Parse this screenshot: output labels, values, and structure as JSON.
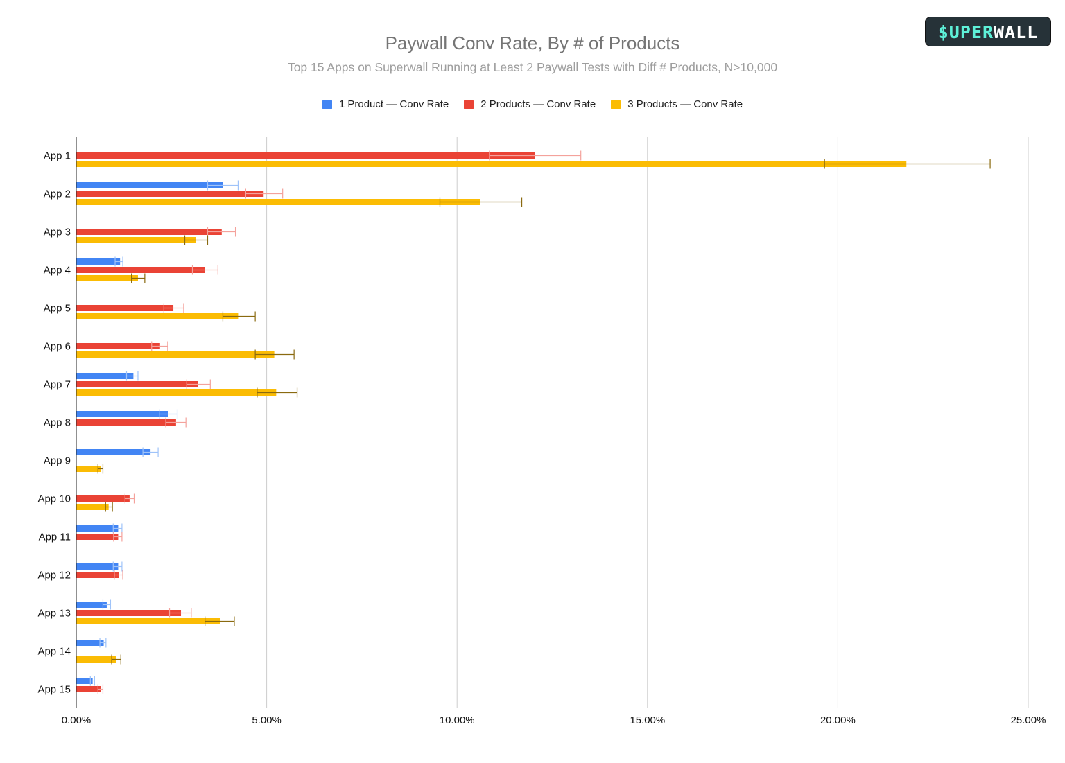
{
  "title": "Paywall Conv Rate, By # of Products",
  "subtitle": "Top 15 Apps on Superwall Running at Least 2 Paywall Tests with Diff # Products, N>10,000",
  "logo": {
    "part1": "$UPER",
    "part2": "WALL"
  },
  "chart_data": {
    "type": "bar",
    "orientation": "horizontal",
    "categories": [
      "App 1",
      "App 2",
      "App 3",
      "App 4",
      "App 5",
      "App 6",
      "App 7",
      "App 8",
      "App 9",
      "App 10",
      "App 11",
      "App 12",
      "App 13",
      "App 14",
      "App 15"
    ],
    "xlim": [
      0,
      25
    ],
    "xticks": [
      "0.00%",
      "5.00%",
      "10.00%",
      "15.00%",
      "20.00%",
      "25.00%"
    ],
    "grid": true,
    "legend_position": "top",
    "series": [
      {
        "name": "1 Product — Conv Rate",
        "color": "#4285f4",
        "errcolor": "#9fc3f9",
        "values": [
          null,
          3.85,
          null,
          1.15,
          null,
          null,
          1.5,
          2.42,
          1.95,
          null,
          1.1,
          1.1,
          0.8,
          0.72,
          0.43
        ],
        "err_low": [
          null,
          3.45,
          null,
          1.02,
          null,
          null,
          1.32,
          2.18,
          1.75,
          null,
          0.97,
          0.97,
          0.7,
          0.62,
          0.37
        ],
        "err_high": [
          null,
          4.25,
          null,
          1.22,
          null,
          null,
          1.62,
          2.65,
          2.15,
          null,
          1.2,
          1.2,
          0.9,
          0.78,
          0.48
        ]
      },
      {
        "name": "2 Products — Conv Rate",
        "color": "#ea4335",
        "errcolor": "#f4a29c",
        "values": [
          12.05,
          4.92,
          3.82,
          3.38,
          2.55,
          2.2,
          3.2,
          2.62,
          null,
          1.4,
          1.1,
          1.12,
          2.75,
          null,
          0.65
        ],
        "err_low": [
          10.85,
          4.45,
          3.45,
          3.05,
          2.3,
          1.98,
          2.9,
          2.35,
          null,
          1.28,
          0.98,
          1.0,
          2.45,
          null,
          0.57
        ],
        "err_high": [
          13.25,
          5.42,
          4.18,
          3.72,
          2.82,
          2.4,
          3.52,
          2.88,
          null,
          1.52,
          1.2,
          1.22,
          3.02,
          null,
          0.7
        ]
      },
      {
        "name": "3 Products — Conv Rate",
        "color": "#fbbc04",
        "errcolor": "#8a6a10",
        "values": [
          21.8,
          10.6,
          3.15,
          1.62,
          4.25,
          5.2,
          5.25,
          null,
          0.65,
          0.85,
          null,
          null,
          3.78,
          1.05,
          null
        ],
        "err_low": [
          19.65,
          9.55,
          2.85,
          1.45,
          3.85,
          4.7,
          4.75,
          null,
          0.57,
          0.77,
          null,
          null,
          3.38,
          0.93,
          null
        ],
        "err_high": [
          24.0,
          11.7,
          3.45,
          1.8,
          4.7,
          5.72,
          5.8,
          null,
          0.7,
          0.95,
          null,
          null,
          4.15,
          1.17,
          null
        ]
      }
    ]
  }
}
